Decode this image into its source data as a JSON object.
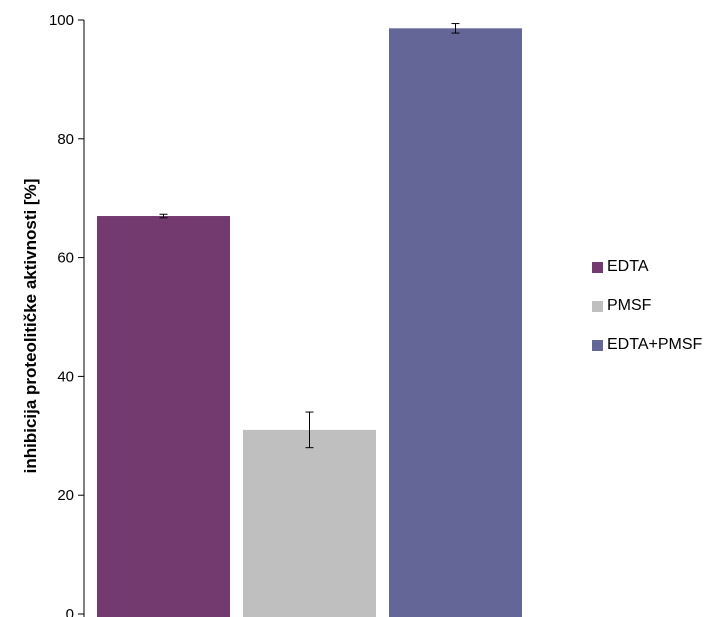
{
  "chart_data": {
    "type": "bar",
    "title": "",
    "xlabel": "",
    "ylabel": "inhibicija proteolitičke aktivnosti [%]",
    "ylim": [
      0,
      100
    ],
    "yticks": [
      "0",
      "20",
      "40",
      "60",
      "80",
      "100"
    ],
    "grid": false,
    "legend_position": "right",
    "series": [
      {
        "name": "EDTA",
        "value": 67.0,
        "error": 0.3,
        "color": "#733a6f"
      },
      {
        "name": "PMSF",
        "value": 31.0,
        "error": 3.0,
        "color": "#bfbfbf"
      },
      {
        "name": "EDTA+PMSF",
        "value": 98.6,
        "error": 0.8,
        "color": "#646698"
      }
    ]
  }
}
